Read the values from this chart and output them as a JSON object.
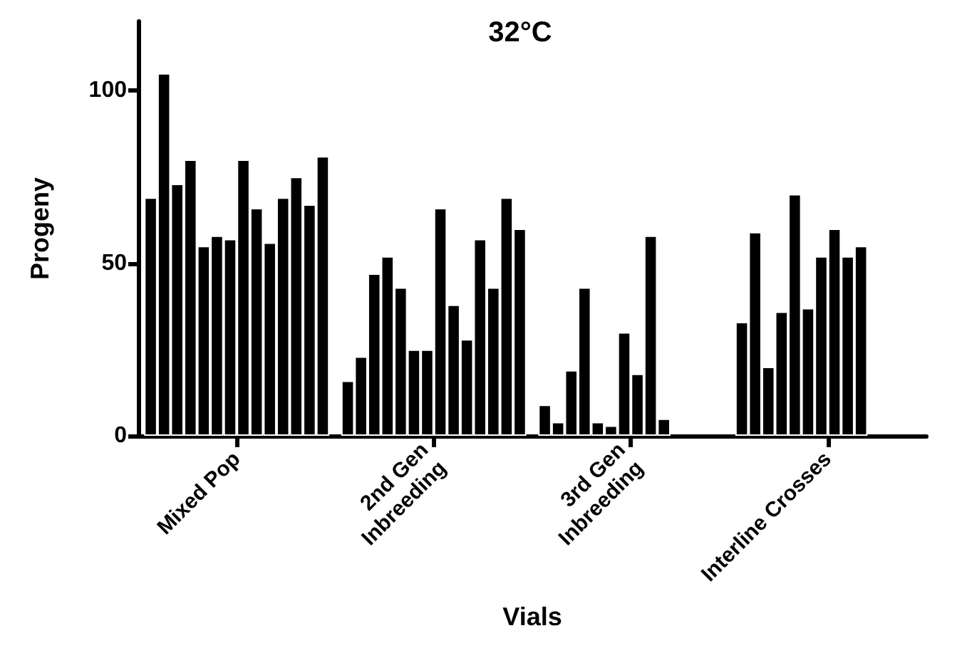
{
  "chart_data": {
    "type": "bar",
    "title": "32°C",
    "xlabel": "Vials",
    "ylabel": "Progeny",
    "categories": [
      "Mixed Pop",
      "2nd Gen\nInbreeding",
      "3rd Gen\nInbreeding",
      "Interline Crosses"
    ],
    "series": [
      {
        "color": "#000000",
        "values": [
          69,
          16,
          9,
          33
        ]
      },
      {
        "color": "#000000",
        "values": [
          105,
          23,
          4,
          59
        ]
      },
      {
        "color": "#000000",
        "values": [
          73,
          47,
          19,
          20
        ]
      },
      {
        "color": "#000000",
        "values": [
          80,
          52,
          43,
          36
        ]
      },
      {
        "color": "#000000",
        "values": [
          55,
          43,
          4,
          70
        ]
      },
      {
        "color": "#000000",
        "values": [
          58,
          25,
          3,
          37
        ]
      },
      {
        "color": "#000000",
        "values": [
          57,
          25,
          30,
          52
        ]
      },
      {
        "color": "#000000",
        "values": [
          80,
          66,
          18,
          60
        ]
      },
      {
        "color": "#000000",
        "values": [
          66,
          38,
          58,
          52
        ]
      },
      {
        "color": "#000000",
        "values": [
          56,
          28,
          5,
          55
        ]
      },
      {
        "color": "#000000",
        "values": [
          69,
          57,
          null,
          null
        ]
      },
      {
        "color": "#000000",
        "values": [
          75,
          43,
          null,
          null
        ]
      },
      {
        "color": "#000000",
        "values": [
          67,
          69,
          null,
          null
        ]
      },
      {
        "color": "#000000",
        "values": [
          81,
          60,
          null,
          null
        ]
      }
    ],
    "ylim": [
      0,
      120
    ],
    "yticks": [
      0,
      50,
      100
    ],
    "grid": false
  }
}
